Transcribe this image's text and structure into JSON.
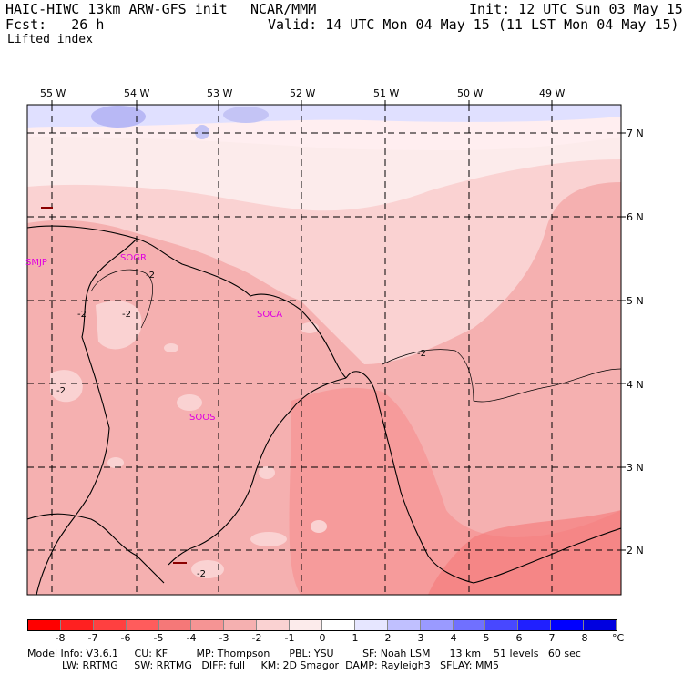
{
  "header": {
    "model": "HAIC-HIWC 13km ARW-GFS init",
    "org": "NCAR/MMM",
    "init": "Init: 12 UTC Sun 03 May 15",
    "fcst": "Fcst:   26 h",
    "valid": "Valid: 14 UTC Mon 04 May 15 (11 LST Mon 04 May 15)",
    "field": "Lifted index"
  },
  "longitudes": [
    "55 W",
    "54 W",
    "53 W",
    "52 W",
    "51 W",
    "50 W",
    "49 W"
  ],
  "latitudes": [
    "7 N",
    "6 N",
    "5 N",
    "4 N",
    "3 N",
    "2 N"
  ],
  "stations": [
    "SMJP",
    "SOGR",
    "SOCA",
    "SOOS"
  ],
  "contour_labels": [
    "-2",
    "-2",
    "-2",
    "-2",
    "-2",
    "-2"
  ],
  "colorbar": {
    "ticks": [
      "-8",
      "-7",
      "-6",
      "-5",
      "-4",
      "-3",
      "-2",
      "-1",
      "0",
      "1",
      "2",
      "3",
      "4",
      "5",
      "6",
      "7",
      "8"
    ],
    "unit": "°C",
    "colors": [
      "#ff0000",
      "#ff2020",
      "#ff4040",
      "#ff5c5c",
      "#f57878",
      "#f59494",
      "#f5b0b0",
      "#fad2d2",
      "#fcebeb",
      "#ffffff",
      "#e6e6ff",
      "#c0c0ff",
      "#9a9aff",
      "#7070ff",
      "#4848ff",
      "#2020ff",
      "#0000ff",
      "#0000e0"
    ]
  },
  "model_info": {
    "line1": "Model Info: V3.6.1     CU: KF         MP: Thompson      PBL: YSU         SF: Noah LSM      13 km    51 levels   60 sec",
    "line2": "LW: RRTMG     SW: RRTMG   DIFF: full     KM: 2D Smagor  DAMP: Rayleigh3   SFLAY: MM5"
  }
}
